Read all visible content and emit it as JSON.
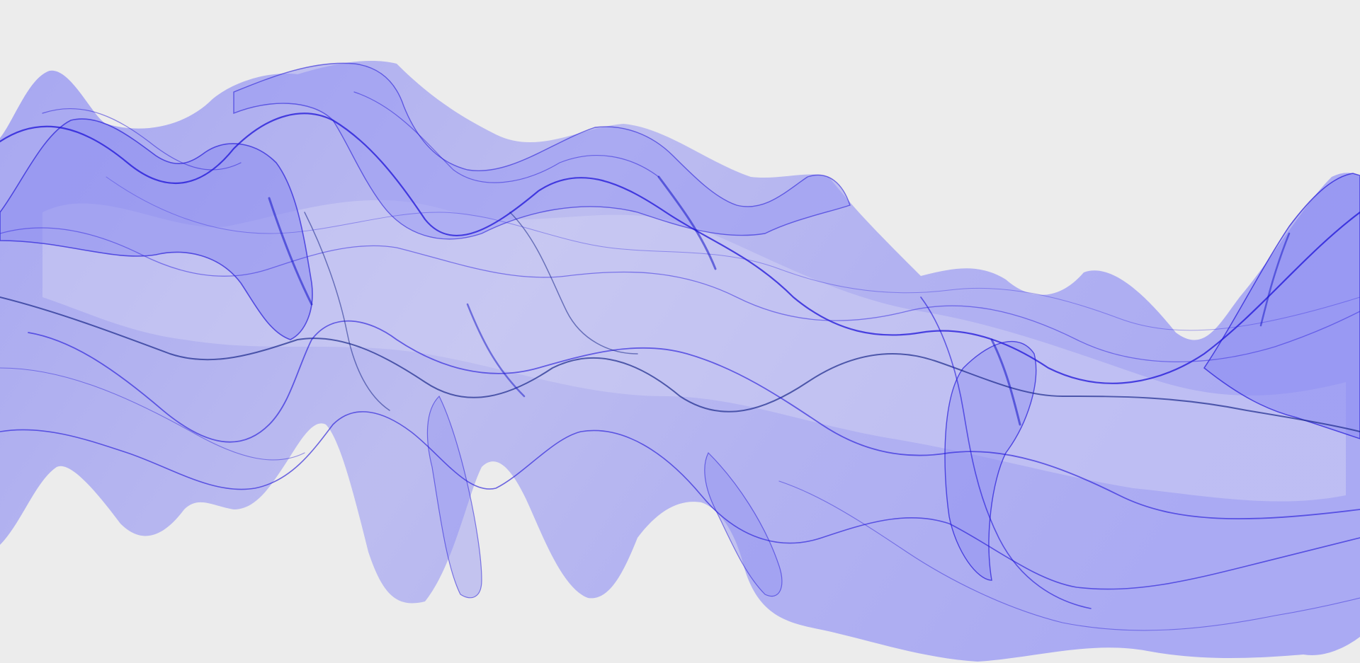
{
  "background": "#ececec",
  "artwork": {
    "subject": "flowing-silk-ribbon",
    "colors": {
      "fill_light": "#9b9bf2",
      "fill_pale": "#c9c9f4",
      "stroke_dark": "#1f14d8",
      "stroke_mid": "#3a2fe0",
      "stroke_navy": "#1b2a8c"
    }
  }
}
